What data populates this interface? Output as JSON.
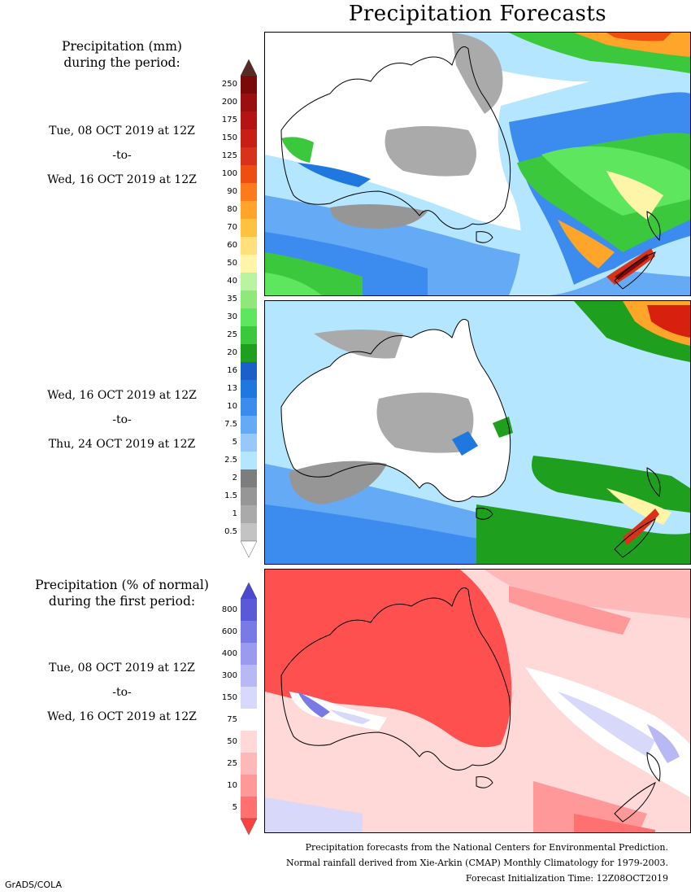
{
  "title": "Precipitation Forecasts",
  "colors": {
    "ocean_rain_blue": "#b3e7ff",
    "mid_blue": "#4da3f0",
    "deep_blue": "#1f5fd8",
    "green": "#28b230",
    "bright_green": "#5fe65f",
    "gray_light": "#b8b8b8",
    "gray_dark": "#7d7d7d",
    "orange": "#ff9b1a",
    "red": "#d8200e",
    "dry_red": "#ff5050"
  },
  "section1": {
    "heading_line1": "Precipitation (mm)",
    "heading_line2": "during the period:",
    "period1": {
      "start": "Tue, 08 OCT 2019 at 12Z",
      "to": "-to-",
      "end": "Wed, 16 OCT 2019 at 12Z"
    },
    "period2": {
      "start": "Wed, 16 OCT 2019 at 12Z",
      "to": "-to-",
      "end": "Thu, 24 OCT 2019 at 12Z"
    },
    "legend": {
      "labels": [
        "250",
        "200",
        "175",
        "150",
        "125",
        "100",
        "90",
        "80",
        "70",
        "60",
        "50",
        "40",
        "35",
        "30",
        "25",
        "20",
        "16",
        "13",
        "10",
        "7.5",
        "5",
        "2.5",
        "2",
        "1.5",
        "1",
        "0.5"
      ],
      "colors": [
        "#7a0a0a",
        "#9a0f0f",
        "#b41414",
        "#c81e14",
        "#d8321a",
        "#ee4e10",
        "#ff7a1a",
        "#ffa52a",
        "#ffc140",
        "#ffe07a",
        "#fff5a8",
        "#b9f5a0",
        "#8ee87a",
        "#5fe65f",
        "#3cc83c",
        "#1ea01e",
        "#1a60c8",
        "#1f78e0",
        "#3c8cf0",
        "#64aaf5",
        "#96c8fa",
        "#b4e6ff",
        "#7d7d7d",
        "#969696",
        "#aaaaaa",
        "#c3c3c3"
      ],
      "top_cap_color": "#5a2a22",
      "bottom_cap_color": "#ffffff"
    }
  },
  "section2": {
    "heading_line1": "Precipitation (% of normal)",
    "heading_line2": "during the first period:",
    "period": {
      "start": "Tue, 08 OCT 2019 at 12Z",
      "to": "-to-",
      "end": "Wed, 16 OCT 2019 at 12Z"
    },
    "legend": {
      "labels": [
        "800",
        "600",
        "400",
        "300",
        "150",
        "75",
        "50",
        "25",
        "10",
        "5"
      ],
      "colors": [
        "#5a5ad8",
        "#7a7ae6",
        "#9a9aee",
        "#b8b8f4",
        "#d8d8fa",
        "#ffffff",
        "#ffd8d8",
        "#ffb8b8",
        "#ff9898",
        "#ff7070"
      ],
      "top_cap_color": "#4a4ad0",
      "bottom_cap_color": "#ff4040"
    }
  },
  "footer": {
    "line1": "Precipitation forecasts from the National Centers for Environmental Prediction.",
    "line2": "Normal rainfall derived from Xie-Arkin (CMAP) Monthly Climatology for 1979-2003.",
    "line3": "Forecast Initialization Time: 12Z08OCT2019"
  },
  "credit": "GrADS/COLA"
}
